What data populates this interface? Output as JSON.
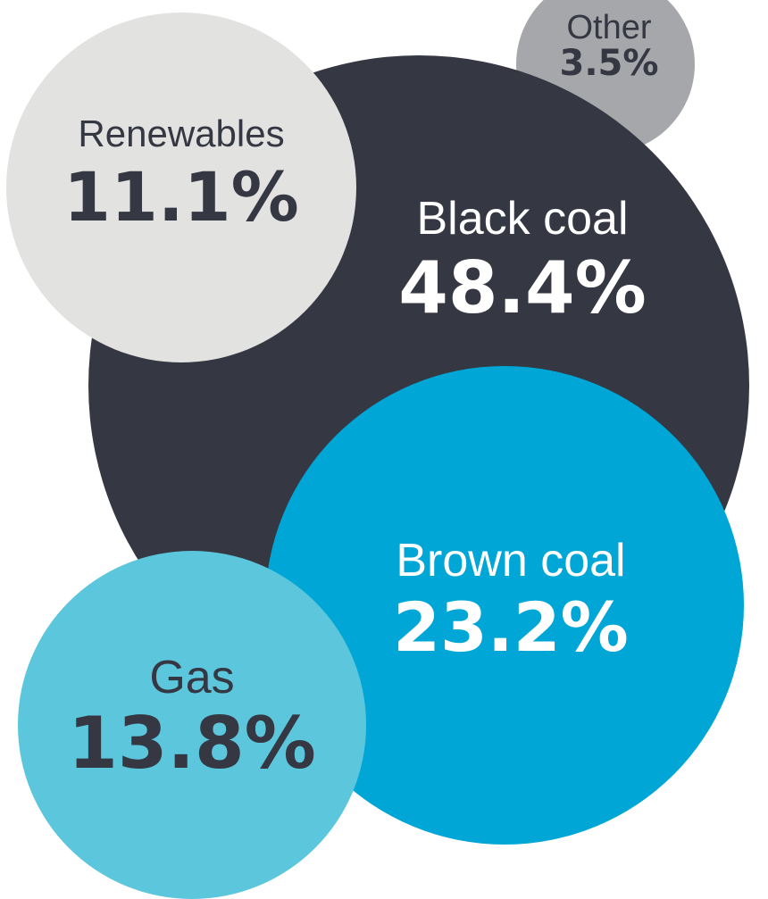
{
  "chart_data": {
    "type": "bubble",
    "unit": "%",
    "series": [
      {
        "category": "Black coal",
        "value": 48.4,
        "display": "48.4%",
        "color": "#353742",
        "text_color": "#ffffff"
      },
      {
        "category": "Brown coal",
        "value": 23.2,
        "display": "23.2%",
        "color": "#00a6d6",
        "text_color": "#ffffff"
      },
      {
        "category": "Gas",
        "value": 13.8,
        "display": "13.8%",
        "color": "#5bc6dc",
        "text_color": "#353742"
      },
      {
        "category": "Renewables",
        "value": 11.1,
        "display": "11.1%",
        "color": "#e2e3e1",
        "text_color": "#353742"
      },
      {
        "category": "Other",
        "value": 3.5,
        "display": "3.5%",
        "color": "#a6a7ab",
        "text_color": "#353742"
      }
    ]
  }
}
